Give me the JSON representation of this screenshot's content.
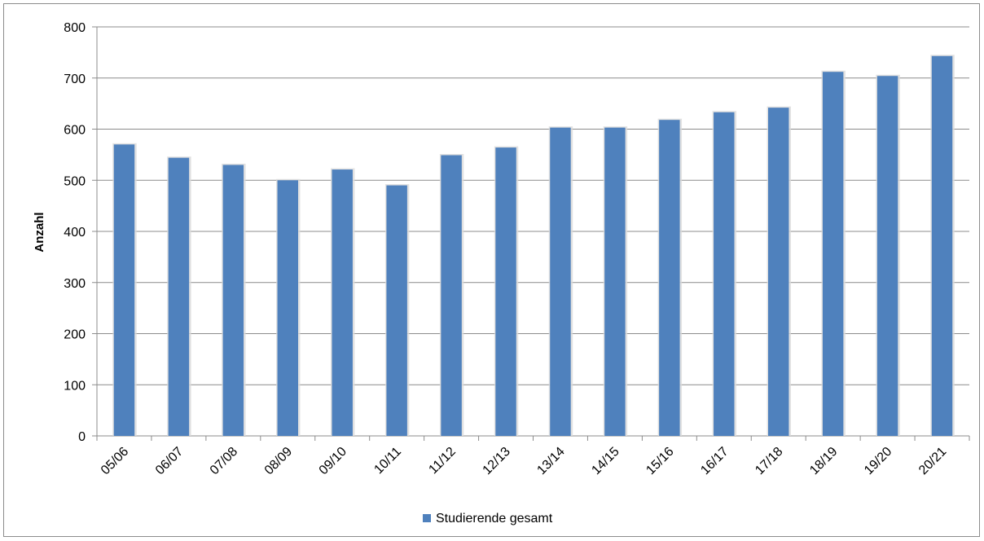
{
  "chart_data": {
    "type": "bar",
    "title": "",
    "xlabel": "",
    "ylabel": "Anzahl",
    "ylim": [
      0,
      800
    ],
    "yticks": [
      0,
      100,
      200,
      300,
      400,
      500,
      600,
      700,
      800
    ],
    "grid": true,
    "legend_position": "bottom",
    "categories": [
      "05/06",
      "06/07",
      "07/08",
      "08/09",
      "09/10",
      "10/11",
      "11/12",
      "12/13",
      "13/14",
      "14/15",
      "15/16",
      "16/17",
      "17/18",
      "18/19",
      "19/20",
      "20/21"
    ],
    "series": [
      {
        "name": "Studierende gesamt",
        "color": "#4f81bd",
        "values": [
          570,
          544,
          530,
          500,
          521,
          490,
          549,
          564,
          603,
          603,
          618,
          633,
          642,
          712,
          704,
          743
        ]
      }
    ]
  }
}
